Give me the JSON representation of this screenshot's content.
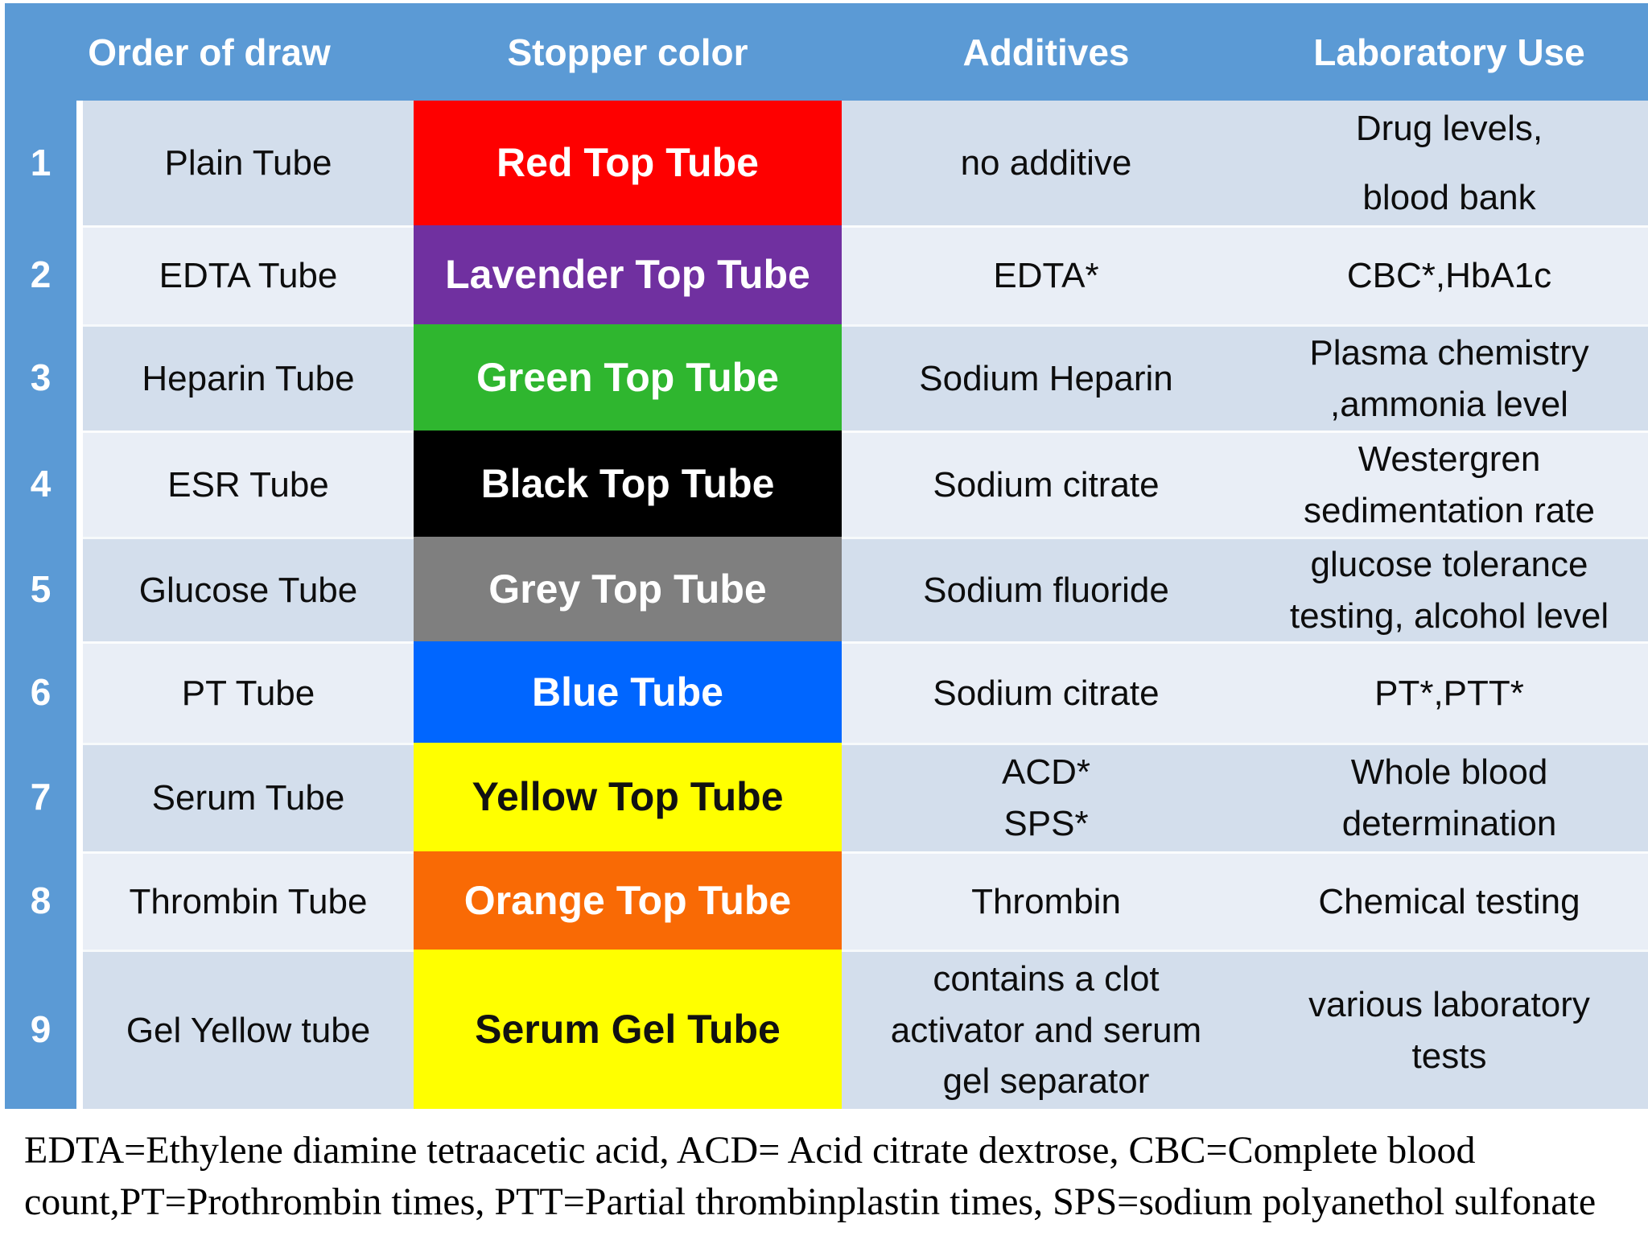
{
  "table": {
    "headers": {
      "order_of_draw": "Order of draw",
      "stopper_color": "Stopper color",
      "additives": "Additives",
      "laboratory_use": "Laboratory Use"
    },
    "rows": [
      {
        "num": "1",
        "name": "Plain Tube",
        "stopper": {
          "label": "Red Top Tube",
          "bg": "#fe0000",
          "fg": "#ffffff"
        },
        "additives": [
          "no additive"
        ],
        "lab_use": [
          "Drug levels,",
          "blood bank"
        ]
      },
      {
        "num": "2",
        "name": "EDTA Tube",
        "stopper": {
          "label": "Lavender Top Tube",
          "bg": "#7030a0",
          "fg": "#ffffff"
        },
        "additives": [
          "EDTA*"
        ],
        "lab_use": [
          "CBC*,HbA1c"
        ]
      },
      {
        "num": "3",
        "name": "Heparin Tube",
        "stopper": {
          "label": "Green Top Tube",
          "bg": "#2fb62f",
          "fg": "#ffffff"
        },
        "additives": [
          "Sodium Heparin"
        ],
        "lab_use": [
          "Plasma chemistry",
          ",ammonia level"
        ]
      },
      {
        "num": "4",
        "name": "ESR Tube",
        "stopper": {
          "label": "Black Top Tube",
          "bg": "#000000",
          "fg": "#ffffff"
        },
        "additives": [
          "Sodium citrate"
        ],
        "lab_use": [
          "Westergren",
          "sedimentation rate"
        ]
      },
      {
        "num": "5",
        "name": "Glucose Tube",
        "stopper": {
          "label": "Grey Top Tube",
          "bg": "#7f7f7f",
          "fg": "#ffffff"
        },
        "additives": [
          "Sodium fluoride"
        ],
        "lab_use": [
          "glucose tolerance",
          "testing, alcohol level"
        ]
      },
      {
        "num": "6",
        "name": "PT Tube",
        "stopper": {
          "label": "Blue Tube",
          "bg": "#0066ff",
          "fg": "#ffffff"
        },
        "additives": [
          "Sodium citrate"
        ],
        "lab_use": [
          "PT*,PTT*"
        ]
      },
      {
        "num": "7",
        "name": "Serum Tube",
        "stopper": {
          "label": "Yellow Top Tube",
          "bg": "#ffff00",
          "fg": "#111111"
        },
        "additives": [
          "ACD*",
          "SPS*"
        ],
        "lab_use": [
          "Whole blood",
          "determination"
        ]
      },
      {
        "num": "8",
        "name": "Thrombin Tube",
        "stopper": {
          "label": "Orange Top Tube",
          "bg": "#f96a05",
          "fg": "#ffffff"
        },
        "additives": [
          "Thrombin"
        ],
        "lab_use": [
          "Chemical testing"
        ]
      },
      {
        "num": "9",
        "name": "Gel Yellow tube",
        "stopper": {
          "label": "Serum Gel Tube",
          "bg": "#ffff00",
          "fg": "#111111"
        },
        "additives": [
          "contains a clot",
          "activator and serum",
          "gel separator"
        ],
        "lab_use": [
          "various laboratory",
          "tests"
        ]
      }
    ]
  },
  "footnote": {
    "lines": [
      "EDTA=Ethylene diamine tetraacetic acid, ACD= Acid citrate dextrose, CBC=Complete blood",
      "count,PT=Prothrombin times, PTT=Partial thrombinplastin times, SPS=sodium polyanethol sulfonate"
    ]
  },
  "colors": {
    "header_bg": "#5b9ad5",
    "number_column_bg": "#5b9ad5",
    "row_odd_bg": "#d3deec",
    "row_even_bg": "#e9eef6",
    "page_bg": "#ffffff",
    "header_text": "#ffffff",
    "body_text": "#0d0d0d"
  }
}
